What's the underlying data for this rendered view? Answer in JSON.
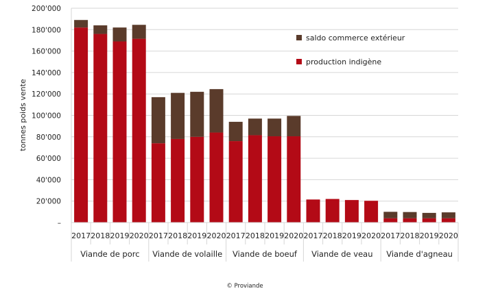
{
  "chart_data": {
    "type": "bar",
    "stacked": true,
    "ylabel": "tonnes poids vente",
    "ylim": [
      0,
      200000
    ],
    "yticks": [
      "–",
      "20'000",
      "40'000",
      "60'000",
      "80'000",
      "100'000",
      "120'000",
      "140'000",
      "160'000",
      "180'000",
      "200'000"
    ],
    "grid": true,
    "legend_position": "top-right",
    "groups": [
      "Viande de porc",
      "Viande de volaille",
      "Viande de boeuf",
      "Viande de veau",
      "Viande d'agneau"
    ],
    "years": [
      "2017",
      "2018",
      "2019",
      "2020"
    ],
    "series": [
      {
        "name": "production indigène",
        "color": "#b30a16",
        "values": [
          182000,
          176000,
          169000,
          171500,
          74000,
          78000,
          80000,
          84000,
          76000,
          81500,
          80500,
          80500,
          21500,
          22000,
          21000,
          20300,
          4000,
          4000,
          4000,
          4000
        ]
      },
      {
        "name": "saldo commerce extérieur",
        "color": "#5a3b2b",
        "values": [
          7000,
          8000,
          13000,
          13000,
          43000,
          43000,
          42000,
          40500,
          18000,
          15500,
          16500,
          19000,
          0,
          0,
          0,
          0,
          6000,
          5800,
          5000,
          5500
        ]
      }
    ]
  },
  "footer": "© Proviande"
}
